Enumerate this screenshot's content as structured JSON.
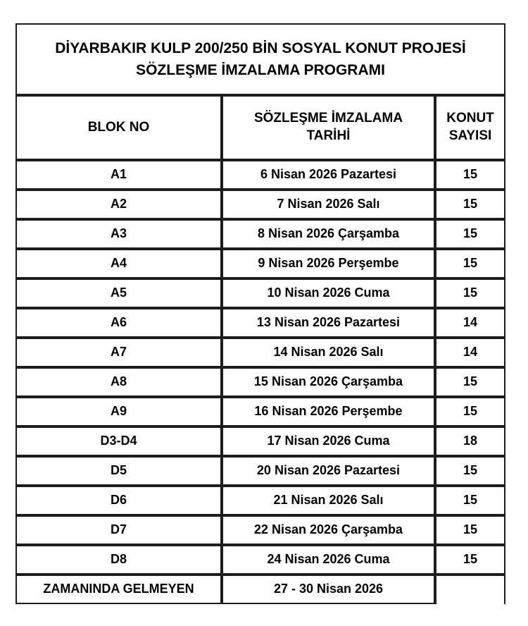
{
  "title": {
    "line1": "DİYARBAKIR KULP 200/250 BİN SOSYAL KONUT PROJESİ",
    "line2": "SÖZLEŞME İMZALAMA PROGRAMI"
  },
  "table": {
    "columns": {
      "blok": "BLOK NO",
      "tarih": "SÖZLEŞME İMZALAMA TARİHİ",
      "konut": "KONUT SAYISI"
    },
    "rows": [
      {
        "blok": "A1",
        "tarih": "6 Nisan 2026 Pazartesi",
        "konut": "15"
      },
      {
        "blok": "A2",
        "tarih": "7 Nisan 2026 Salı",
        "konut": "15"
      },
      {
        "blok": "A3",
        "tarih": "8 Nisan 2026 Çarşamba",
        "konut": "15"
      },
      {
        "blok": "A4",
        "tarih": "9 Nisan 2026 Perşembe",
        "konut": "15"
      },
      {
        "blok": "A5",
        "tarih": "10 Nisan 2026 Cuma",
        "konut": "15"
      },
      {
        "blok": "A6",
        "tarih": "13 Nisan 2026 Pazartesi",
        "konut": "14"
      },
      {
        "blok": "A7",
        "tarih": "14 Nisan 2026 Salı",
        "konut": "14"
      },
      {
        "blok": "A8",
        "tarih": "15 Nisan 2026 Çarşamba",
        "konut": "15"
      },
      {
        "blok": "A9",
        "tarih": "16 Nisan 2026 Perşembe",
        "konut": "15"
      },
      {
        "blok": "D3-D4",
        "tarih": "17 Nisan 2026 Cuma",
        "konut": "18"
      },
      {
        "blok": "D5",
        "tarih": "20 Nisan 2026 Pazartesi",
        "konut": "15"
      },
      {
        "blok": "D6",
        "tarih": "21 Nisan 2026 Salı",
        "konut": "15"
      },
      {
        "blok": "D7",
        "tarih": "22 Nisan 2026 Çarşamba",
        "konut": "15"
      },
      {
        "blok": "D8",
        "tarih": "24 Nisan 2026 Cuma",
        "konut": "15"
      },
      {
        "blok": "ZAMANINDA GELMEYEN",
        "tarih": "27 - 30 Nisan 2026",
        "konut": ""
      }
    ]
  }
}
